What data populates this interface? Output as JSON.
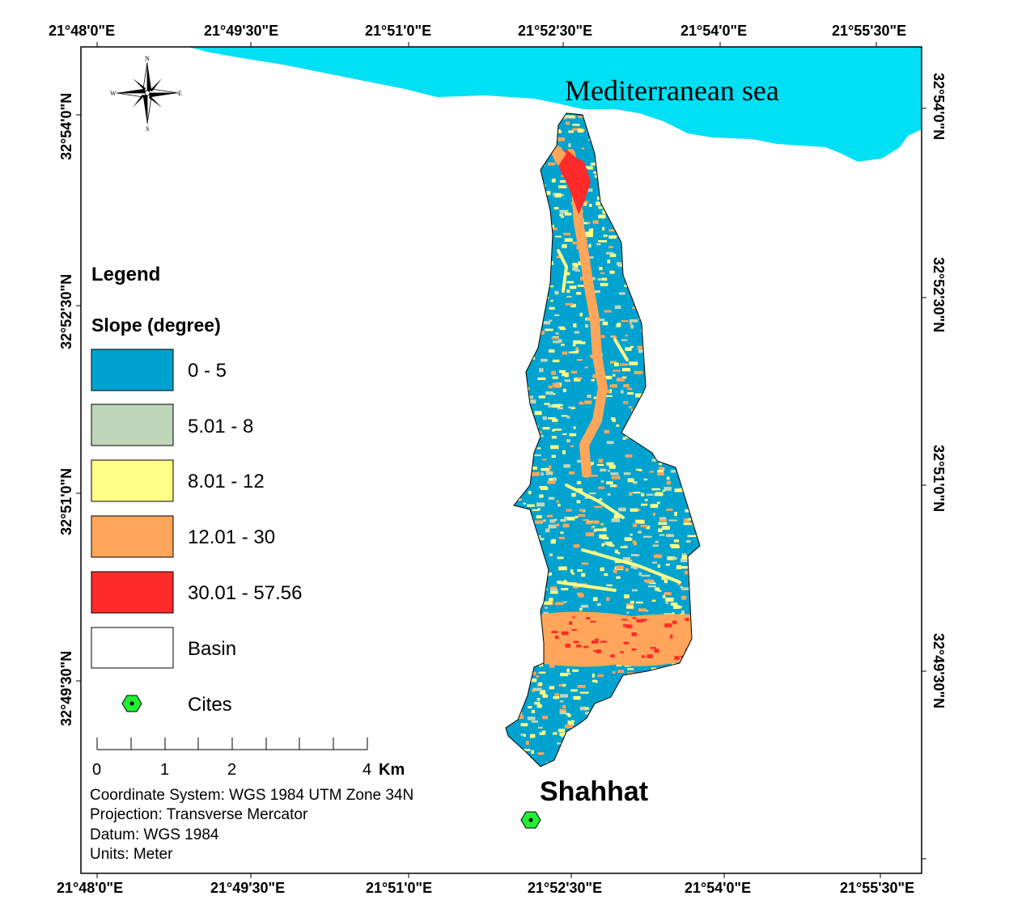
{
  "map": {
    "sea_label": "Mediterranean sea",
    "city_label": "Shahhat",
    "colors": {
      "sea": "#00e0f5",
      "slope_0_5": "#00a2cf",
      "slope_5_8": "#bfd6b8",
      "slope_8_12": "#ffff88",
      "slope_12_30": "#ffa65a",
      "slope_30_57": "#ff2a2a",
      "city_marker": "#22ee33"
    }
  },
  "coords": {
    "top": [
      "21°48'0\"E",
      "21°49'30\"E",
      "21°51'0\"E",
      "21°52'30\"E",
      "21°54'0\"E",
      "21°55'30\"E"
    ],
    "bottom": [
      "21°48'0\"E",
      "21°49'30\"E",
      "21°51'0\"E",
      "21°52'30\"E",
      "21°54'0\"E",
      "21°55'30\"E"
    ],
    "left": [
      "32°54'0\"N",
      "32°52'30\"N",
      "32°51'0\"N",
      "32°49'30\"N"
    ],
    "right": [
      "32°54'0\"N",
      "32°52'30\"N",
      "32°51'0\"N",
      "32°49'30\"N"
    ]
  },
  "compass": {
    "n": "N",
    "s": "S",
    "e": "E",
    "w": "W"
  },
  "legend": {
    "title": "Legend",
    "subtitle": "Slope (degree)",
    "items": [
      {
        "label": "0 - 5",
        "color": "#00a2cf"
      },
      {
        "label": "5.01 - 8",
        "color": "#bfd6b8"
      },
      {
        "label": "8.01 - 12",
        "color": "#ffff88"
      },
      {
        "label": "12.01 - 30",
        "color": "#ffa65a"
      },
      {
        "label": "30.01 - 57.56",
        "color": "#ff2a2a"
      },
      {
        "label": "Basin",
        "color": "#ffffff"
      }
    ],
    "cities_label": "Cites"
  },
  "scale": {
    "labels": [
      "0",
      "1",
      "2",
      "4"
    ],
    "unit": "Km"
  },
  "info": {
    "coordinate_system": "Coordinate System: WGS 1984 UTM Zone 34N",
    "projection": "Projection: Transverse Mercator",
    "datum": "Datum: WGS 1984",
    "units": "Units: Meter"
  }
}
